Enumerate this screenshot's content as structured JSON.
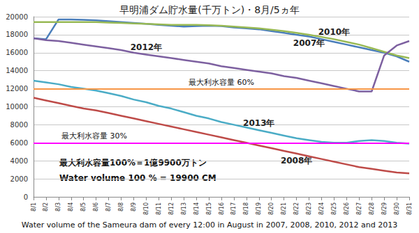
{
  "chart_data": {
    "type": "line",
    "title": "早明浦ダム貯水量(千万トン)・8月/5ヵ年",
    "categories": [
      "8/1",
      "8/2",
      "8/3",
      "8/4",
      "8/5",
      "8/6",
      "8/7",
      "8/8",
      "8/9",
      "8/10",
      "8/11",
      "8/12",
      "8/13",
      "8/14",
      "8/15",
      "8/16",
      "8/17",
      "8/18",
      "8/19",
      "8/20",
      "8/21",
      "8/22",
      "8/23",
      "8/24",
      "8/25",
      "8/26",
      "8/27",
      "8/28",
      "8/29",
      "8/30",
      "8/31"
    ],
    "ylim": [
      0,
      20000
    ],
    "yticks": [
      0,
      2000,
      4000,
      6000,
      8000,
      10000,
      12000,
      14000,
      16000,
      18000,
      20000
    ],
    "grid": true,
    "series": [
      {
        "name": "2007年",
        "color": "#4a7ebb",
        "values": [
          17600,
          17500,
          19700,
          19700,
          19650,
          19600,
          19500,
          19400,
          19300,
          19200,
          19100,
          19000,
          18900,
          18950,
          19000,
          18950,
          18800,
          18700,
          18600,
          18400,
          18200,
          18000,
          17800,
          17500,
          17200,
          16900,
          16600,
          16300,
          16000,
          15600,
          15000
        ]
      },
      {
        "name": "2010年",
        "color": "#98b954",
        "values": [
          19400,
          19400,
          19400,
          19400,
          19400,
          19400,
          19350,
          19300,
          19250,
          19200,
          19150,
          19100,
          19100,
          19100,
          19050,
          19000,
          18900,
          18800,
          18700,
          18550,
          18400,
          18200,
          18000,
          17750,
          17500,
          17200,
          16900,
          16500,
          16100,
          15700,
          15400
        ]
      },
      {
        "name": "2012年",
        "color": "#7d60a0",
        "values": [
          17600,
          17400,
          17300,
          17100,
          16900,
          16700,
          16500,
          16300,
          16000,
          15800,
          15600,
          15400,
          15200,
          15000,
          14800,
          14500,
          14300,
          14100,
          13900,
          13700,
          13400,
          13200,
          12900,
          12600,
          12300,
          12000,
          11700,
          11700,
          15700,
          16800,
          17300
        ]
      },
      {
        "name": "2013年",
        "color": "#4bacc6",
        "values": [
          12900,
          12700,
          12500,
          12200,
          12000,
          11800,
          11500,
          11200,
          10800,
          10500,
          10100,
          9800,
          9400,
          9000,
          8700,
          8300,
          8000,
          7700,
          7400,
          7100,
          6800,
          6500,
          6300,
          6100,
          6000,
          6000,
          6200,
          6300,
          6200,
          6000,
          5900
        ]
      },
      {
        "name": "2008年",
        "color": "#be4b48",
        "values": [
          11000,
          10700,
          10400,
          10100,
          9800,
          9600,
          9300,
          9000,
          8700,
          8400,
          8100,
          7800,
          7500,
          7200,
          6900,
          6600,
          6300,
          6000,
          5700,
          5400,
          5100,
          4800,
          4500,
          4200,
          3900,
          3600,
          3300,
          3100,
          2900,
          2700,
          2600
        ]
      }
    ],
    "reference_lines": [
      {
        "label": "最大利水容量 60%",
        "value": 12000,
        "color": "#f79646"
      },
      {
        "label": "最大利水容量 30%",
        "value": 6000,
        "color": "#ff00ff"
      }
    ],
    "annotations": [
      "最大利水容量100%＝1億9900万トン",
      "Water volume 100 % = 19900 CM"
    ],
    "caption": "Water volume of the Sameura dam of every 12:00 in August in 2007, 2008, 2010, 2012 and 2013"
  }
}
